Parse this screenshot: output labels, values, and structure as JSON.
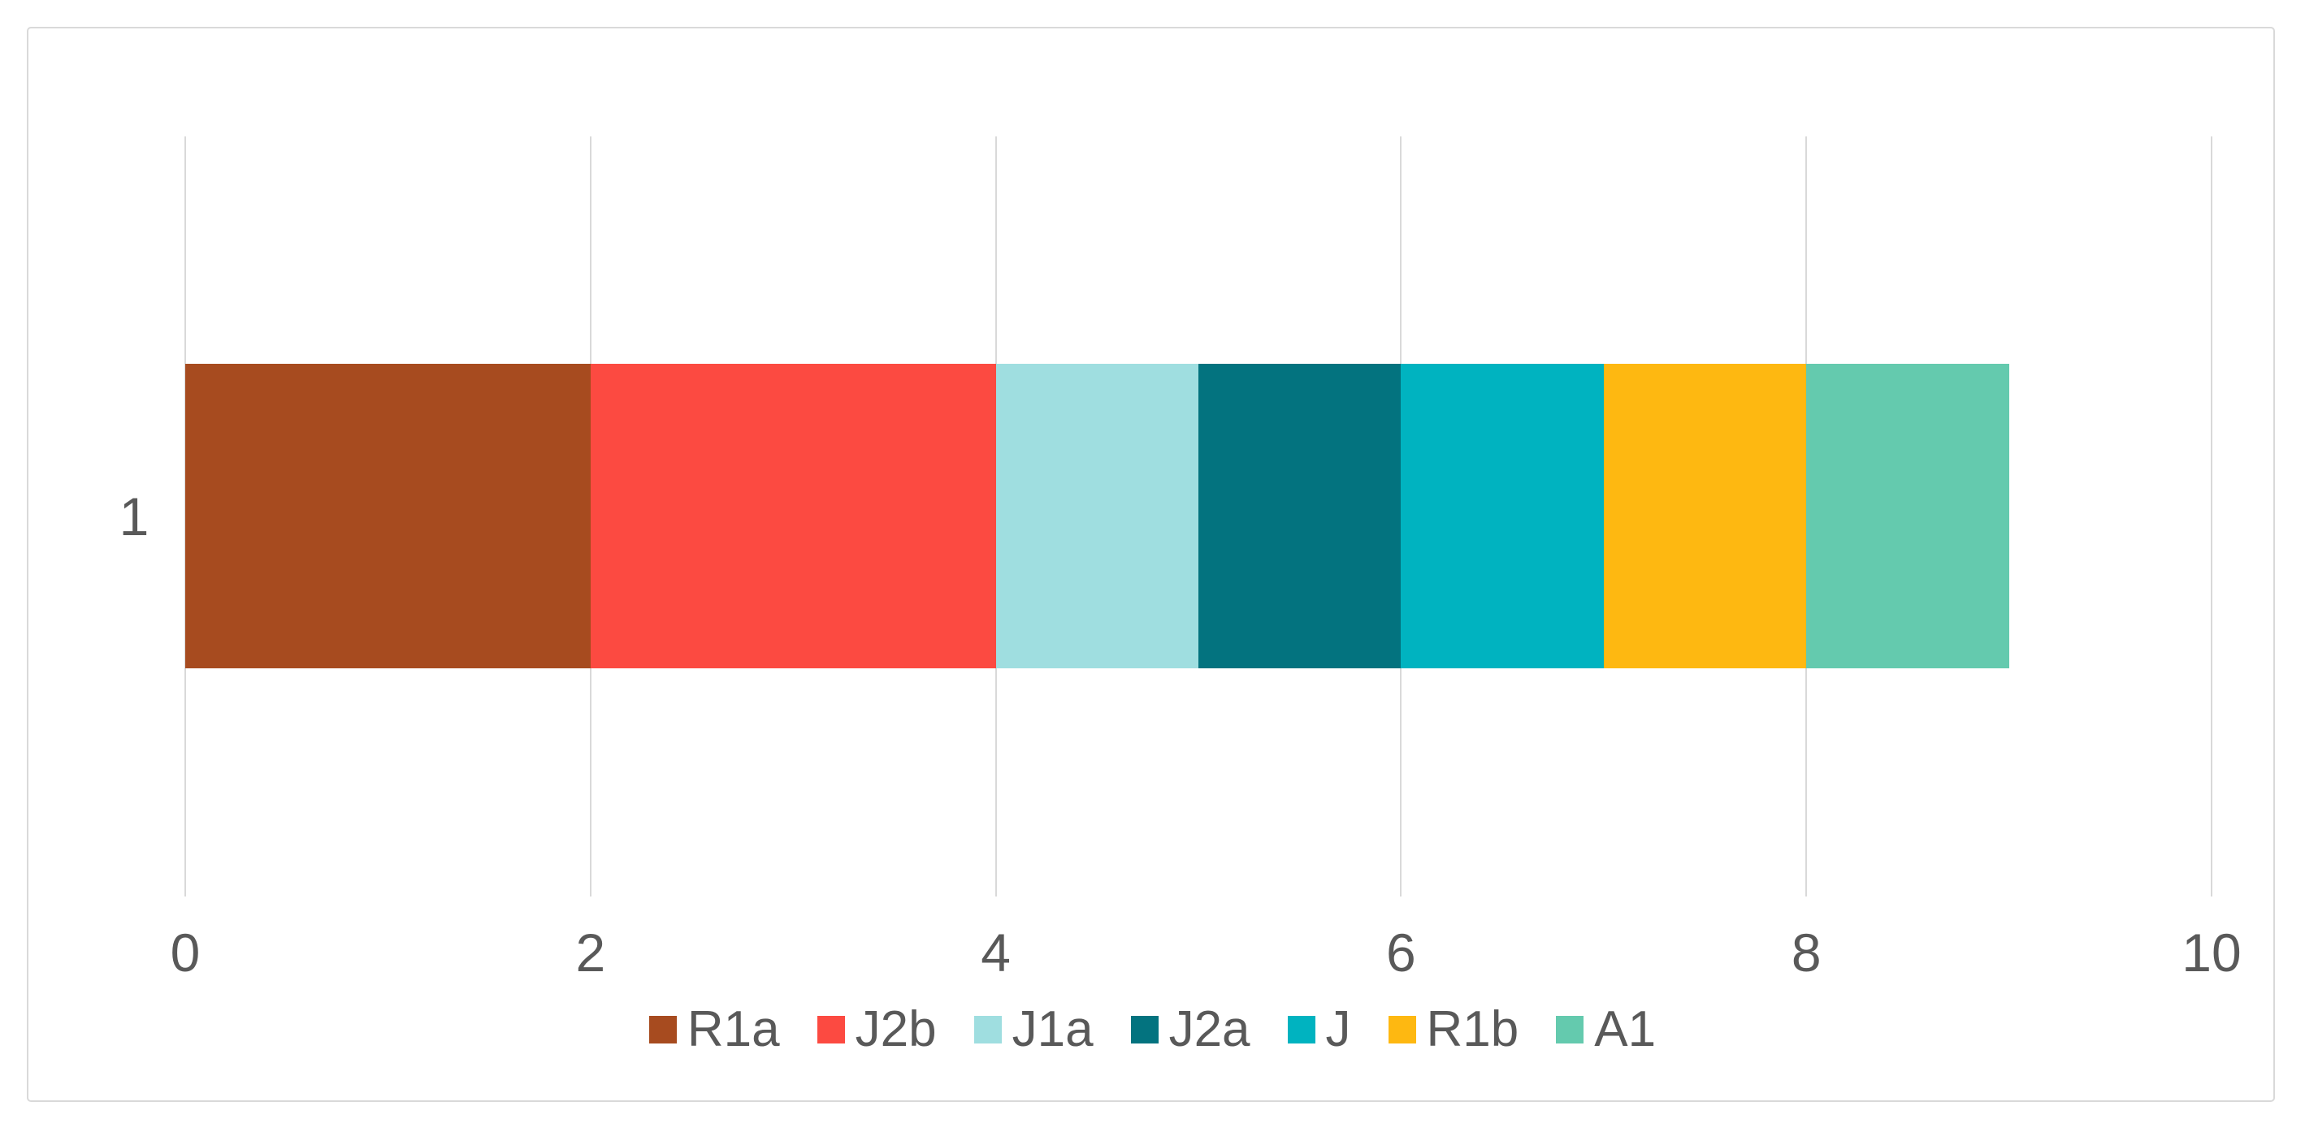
{
  "figure": {
    "background_color": "#FFFFFF",
    "border_color": "#D9D9D9",
    "gridline_color": "#D9D9D9",
    "text_color": "#595959"
  },
  "chart_data": {
    "type": "bar",
    "orientation": "horizontal",
    "stacked": true,
    "title": "",
    "xlabel": "",
    "ylabel": "",
    "categories": [
      "1"
    ],
    "series": [
      {
        "name": "R1a",
        "values": [
          2
        ],
        "color": "#A74B1F"
      },
      {
        "name": "J2b",
        "values": [
          2
        ],
        "color": "#FC4A41"
      },
      {
        "name": "J1a",
        "values": [
          1
        ],
        "color": "#9FDEE0"
      },
      {
        "name": "J2a",
        "values": [
          1
        ],
        "color": "#03737F"
      },
      {
        "name": "J",
        "values": [
          1
        ],
        "color": "#00B3C0"
      },
      {
        "name": "R1b",
        "values": [
          1
        ],
        "color": "#FEB811"
      },
      {
        "name": "A1",
        "values": [
          1
        ],
        "color": "#64CAAE"
      }
    ],
    "total": 9,
    "xlim": [
      0,
      10
    ],
    "x_ticks": [
      0,
      2,
      4,
      6,
      8,
      10
    ],
    "grid": "vertical",
    "legend_position": "bottom",
    "legend_order": [
      "R1a",
      "J2b",
      "J1a",
      "J2a",
      "J",
      "R1b",
      "A1"
    ]
  }
}
